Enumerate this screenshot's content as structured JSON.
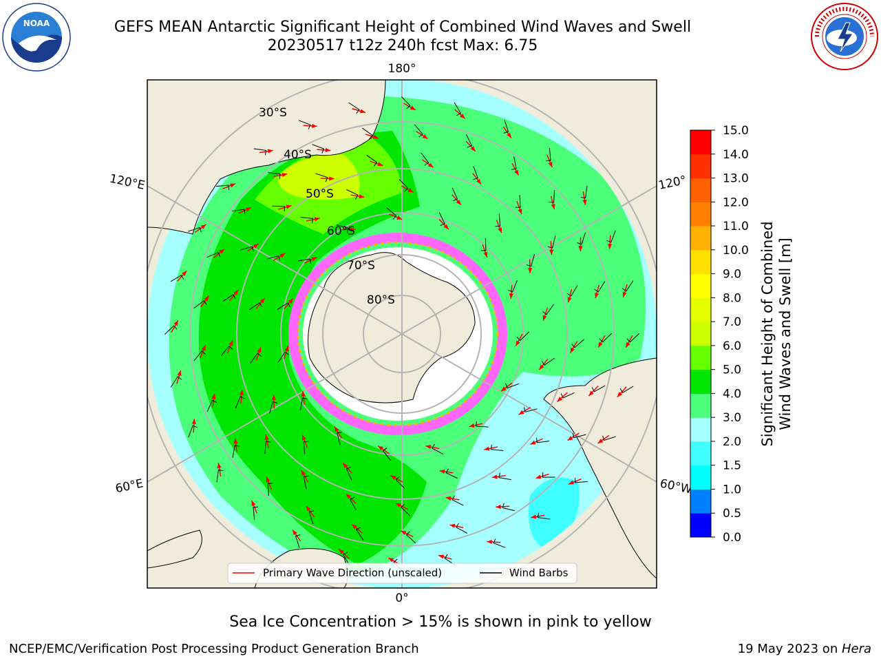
{
  "header": {
    "title_line1": "GEFS MEAN Antarctic Significant Height of Combined Wind Waves and Swell",
    "title_line2": "20230517 t12z 240h fcst   Max: 6.75"
  },
  "logos": {
    "left": {
      "name": "noaa-logo",
      "text": "NOAA"
    },
    "right": {
      "name": "nws-logo",
      "text": "NATIONAL WEATHER SERVICE"
    }
  },
  "map": {
    "projection": "south-polar-stereographic",
    "longitude_labels": {
      "top": "180°",
      "bottom": "0°",
      "left_upper": "120°E",
      "left_lower": "60°E",
      "right_upper": "120°",
      "right_lower": "60°W"
    },
    "latitude_labels": [
      "30°S",
      "40°S",
      "50°S",
      "60°S",
      "70°S",
      "80°S"
    ],
    "colors": {
      "land": "#efecdc",
      "ocean_low": "#a6ffff",
      "ocean_mid": "#4cff7a",
      "ocean_high": "#00e600",
      "ocean_peak": "#66ff00",
      "ocean_max": "#ccff00",
      "ice": "#ff66ff",
      "grid": "#b4b4b4"
    }
  },
  "legend": {
    "primary_wave": "Primary Wave Direction (unscaled)",
    "wind_barbs": "Wind Barbs",
    "primary_wave_color": "#ff0000",
    "wind_barbs_color": "#000000"
  },
  "colorbar": {
    "label_line1": "Significant Height of Combined",
    "label_line2": "Wind Waves and Swell [m]",
    "ticks": [
      "0.0",
      "0.5",
      "1.0",
      "1.5",
      "2.0",
      "3.0",
      "4.0",
      "5.0",
      "6.0",
      "7.0",
      "8.0",
      "9.0",
      "10.0",
      "11.0",
      "12.0",
      "13.0",
      "14.0",
      "15.0"
    ],
    "colors": [
      "#0000ff",
      "#0080ff",
      "#00ffff",
      "#40ffff",
      "#a6ffff",
      "#4cff7a",
      "#00e600",
      "#66ff00",
      "#ccff00",
      "#e6ff00",
      "#ffff00",
      "#ffe000",
      "#ffb000",
      "#ff8000",
      "#ff6000",
      "#ff3000",
      "#ff0000"
    ]
  },
  "note": "Sea Ice Concentration > 15% is shown in pink to yellow",
  "footer": {
    "left": "NCEP/EMC/Verification Post Processing Product Generation Branch",
    "right_date": "19 May 2023 on ",
    "right_machine": "Hera"
  }
}
